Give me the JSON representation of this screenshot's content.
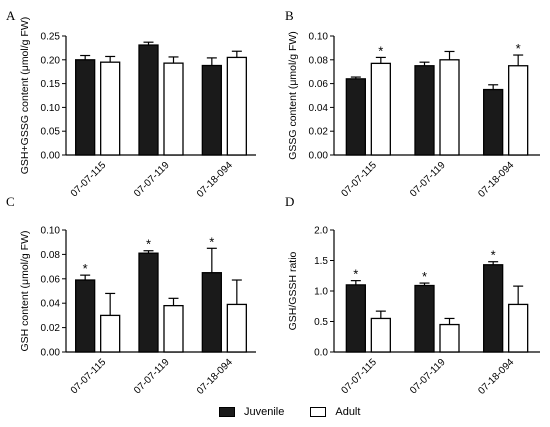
{
  "legend": {
    "juvenile": "Juvenile",
    "adult": "Adult"
  },
  "colors": {
    "juvenile": "#1a1a1a",
    "adult": "#ffffff",
    "axis": "#000000"
  },
  "chart_data": [
    {
      "type": "bar",
      "panel_label": "A",
      "title": "",
      "xlabel": "",
      "ylabel": "GSH+GSSG content (μmol/g FW)",
      "categories": [
        "07-07-115",
        "07-07-119",
        "07-18-094"
      ],
      "ylim": [
        0,
        0.25
      ],
      "yticks": [
        0.0,
        0.05,
        0.1,
        0.15,
        0.2,
        0.25
      ],
      "yticklabels": [
        "0.00",
        "0.05",
        "0.10",
        "0.15",
        "0.20",
        "0.25"
      ],
      "series": [
        {
          "name": "Juvenile",
          "values": [
            0.2,
            0.231,
            0.188
          ],
          "errors": [
            0.009,
            0.006,
            0.016
          ],
          "stars": [
            "",
            "",
            ""
          ]
        },
        {
          "name": "Adult",
          "values": [
            0.195,
            0.193,
            0.205
          ],
          "errors": [
            0.012,
            0.013,
            0.013
          ],
          "stars": [
            "",
            "",
            ""
          ]
        }
      ]
    },
    {
      "type": "bar",
      "panel_label": "B",
      "title": "",
      "xlabel": "",
      "ylabel": "GSSG content (μmol/g FW)",
      "categories": [
        "07-07-115",
        "07-07-119",
        "07-18-094"
      ],
      "ylim": [
        0,
        0.1
      ],
      "yticks": [
        0.0,
        0.02,
        0.04,
        0.06,
        0.08,
        0.1
      ],
      "yticklabels": [
        "0.00",
        "0.02",
        "0.04",
        "0.06",
        "0.08",
        "0.10"
      ],
      "series": [
        {
          "name": "Juvenile",
          "values": [
            0.064,
            0.075,
            0.055
          ],
          "errors": [
            0.0015,
            0.003,
            0.004
          ],
          "stars": [
            "",
            "",
            ""
          ]
        },
        {
          "name": "Adult",
          "values": [
            0.077,
            0.08,
            0.075
          ],
          "errors": [
            0.005,
            0.007,
            0.009
          ],
          "stars": [
            "*",
            "",
            "*"
          ]
        }
      ]
    },
    {
      "type": "bar",
      "panel_label": "C",
      "title": "",
      "xlabel": "",
      "ylabel": "GSH content (μmol/g FW)",
      "categories": [
        "07-07-115",
        "07-07-119",
        "07-18-094"
      ],
      "ylim": [
        0,
        0.1
      ],
      "yticks": [
        0.0,
        0.02,
        0.04,
        0.06,
        0.08,
        0.1
      ],
      "yticklabels": [
        "0.00",
        "0.02",
        "0.04",
        "0.06",
        "0.08",
        "0.10"
      ],
      "series": [
        {
          "name": "Juvenile",
          "values": [
            0.059,
            0.081,
            0.065
          ],
          "errors": [
            0.004,
            0.002,
            0.02
          ],
          "stars": [
            "*",
            "*",
            "*"
          ]
        },
        {
          "name": "Adult",
          "values": [
            0.03,
            0.038,
            0.039
          ],
          "errors": [
            0.018,
            0.006,
            0.02
          ],
          "stars": [
            "",
            "",
            ""
          ]
        }
      ]
    },
    {
      "type": "bar",
      "panel_label": "D",
      "title": "",
      "xlabel": "",
      "ylabel": "GSH/GSSH ratio",
      "categories": [
        "07-07-115",
        "07-07-119",
        "07-18-094"
      ],
      "ylim": [
        0,
        2.0
      ],
      "yticks": [
        0.0,
        0.5,
        1.0,
        1.5,
        2.0
      ],
      "yticklabels": [
        "0.0",
        "0.5",
        "1.0",
        "1.5",
        "2.0"
      ],
      "series": [
        {
          "name": "Juvenile",
          "values": [
            1.1,
            1.09,
            1.43
          ],
          "errors": [
            0.07,
            0.04,
            0.05
          ],
          "stars": [
            "*",
            "*",
            "*"
          ]
        },
        {
          "name": "Adult",
          "values": [
            0.55,
            0.45,
            0.78
          ],
          "errors": [
            0.12,
            0.1,
            0.3
          ],
          "stars": [
            "",
            "",
            ""
          ]
        }
      ]
    }
  ]
}
